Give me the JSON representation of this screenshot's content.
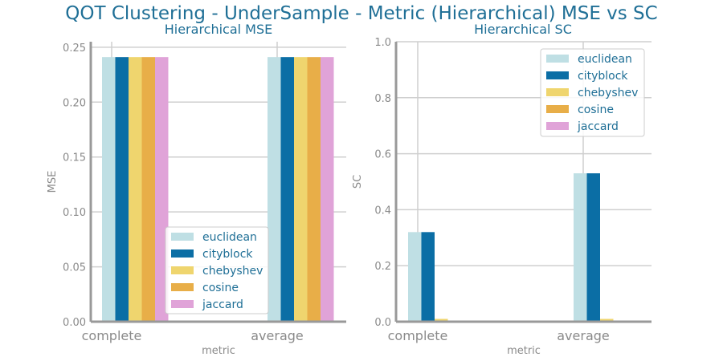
{
  "figure": {
    "title": "QOT Clustering - UnderSample - Metric (Hierarchical) MSE vs SC"
  },
  "chart_data": [
    {
      "type": "bar",
      "title": "Hierarchical MSE",
      "xlabel": "metric",
      "ylabel": "MSE",
      "categories": [
        "complete",
        "average"
      ],
      "ylim": [
        0,
        0.255
      ],
      "yticks": [
        "0.00",
        "0.05",
        "0.10",
        "0.15",
        "0.20",
        "0.25"
      ],
      "grid": true,
      "legend_position": "lower-right",
      "series": [
        {
          "name": "euclidean",
          "color": "#bfdfe4",
          "values": [
            0.241,
            0.241
          ]
        },
        {
          "name": "cityblock",
          "color": "#0b6ea5",
          "values": [
            0.241,
            0.241
          ]
        },
        {
          "name": "chebyshev",
          "color": "#efd56e",
          "values": [
            0.241,
            0.241
          ]
        },
        {
          "name": "cosine",
          "color": "#e8ae48",
          "values": [
            0.241,
            0.241
          ]
        },
        {
          "name": "jaccard",
          "color": "#e0a3d8",
          "values": [
            0.241,
            0.241
          ]
        }
      ]
    },
    {
      "type": "bar",
      "title": "Hierarchical SC",
      "xlabel": "metric",
      "ylabel": "SC",
      "categories": [
        "complete",
        "average"
      ],
      "ylim": [
        0,
        1.0
      ],
      "yticks": [
        "0.0",
        "0.2",
        "0.4",
        "0.6",
        "0.8",
        "1.0"
      ],
      "grid": true,
      "legend_position": "upper-right",
      "series": [
        {
          "name": "euclidean",
          "color": "#bfdfe4",
          "values": [
            0.32,
            0.53
          ]
        },
        {
          "name": "cityblock",
          "color": "#0b6ea5",
          "values": [
            0.32,
            0.53
          ]
        },
        {
          "name": "chebyshev",
          "color": "#efd56e",
          "values": [
            0.01,
            0.01
          ]
        },
        {
          "name": "cosine",
          "color": "#e8ae48",
          "values": [
            0,
            0
          ]
        },
        {
          "name": "jaccard",
          "color": "#e0a3d8",
          "values": [
            0,
            0
          ]
        }
      ]
    }
  ]
}
